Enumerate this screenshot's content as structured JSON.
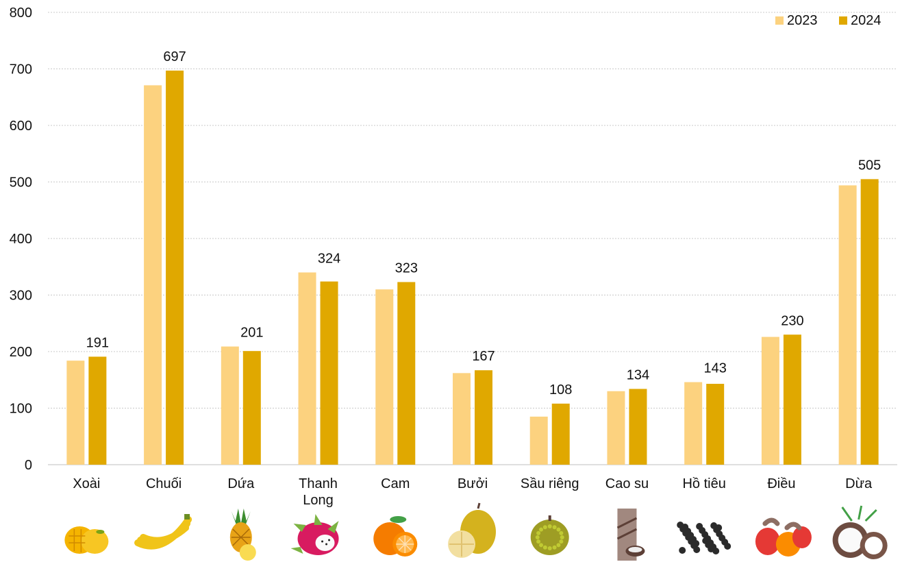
{
  "chart_data": {
    "type": "bar",
    "title": "",
    "xlabel": "",
    "ylabel": "",
    "ylim": [
      0,
      800
    ],
    "yticks": [
      0,
      100,
      200,
      300,
      400,
      500,
      600,
      700,
      800
    ],
    "grid": true,
    "legend_position": "top-right",
    "categories": [
      "Xoài",
      "Chuối",
      "Dứa",
      "Thanh Long",
      "Cam",
      "Bưởi",
      "Sầu riêng",
      "Cao su",
      "Hồ tiêu",
      "Điều",
      "Dừa"
    ],
    "series": [
      {
        "name": "2023",
        "color": "#FCD27F",
        "values": [
          184,
          671,
          209,
          340,
          310,
          162,
          85,
          130,
          146,
          226,
          494
        ]
      },
      {
        "name": "2024",
        "color": "#E0A800",
        "values": [
          191,
          697,
          201,
          324,
          323,
          167,
          108,
          134,
          143,
          230,
          505
        ]
      }
    ],
    "data_labels": {
      "series": "2024",
      "values": [
        "191",
        "697",
        "201",
        "324",
        "323",
        "167",
        "108",
        "134",
        "143",
        "230",
        "505"
      ]
    },
    "category_icons": [
      "mango-icon",
      "banana-icon",
      "pineapple-icon",
      "dragon-fruit-icon",
      "orange-icon",
      "pomelo-icon",
      "durian-icon",
      "rubber-tree-icon",
      "black-pepper-icon",
      "cashew-icon",
      "coconut-icon"
    ]
  }
}
